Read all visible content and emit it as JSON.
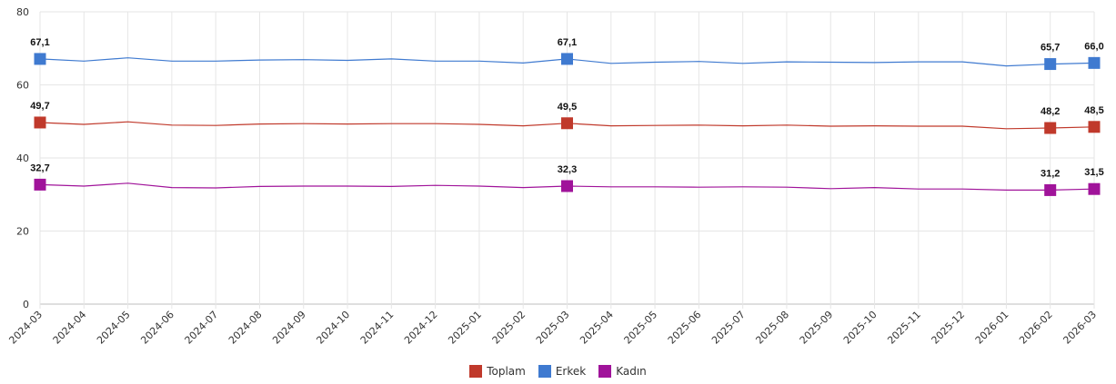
{
  "chart_data": {
    "type": "line",
    "x": [
      "2024-03",
      "2024-04",
      "2024-05",
      "2024-06",
      "2024-07",
      "2024-08",
      "2024-09",
      "2024-10",
      "2024-11",
      "2024-12",
      "2025-01",
      "2025-02",
      "2025-03",
      "2025-04",
      "2025-05",
      "2025-06",
      "2025-07",
      "2025-08",
      "2025-09",
      "2025-10",
      "2025-11",
      "2025-12",
      "2026-01",
      "2026-02",
      "2026-03"
    ],
    "ylim": [
      0,
      80
    ],
    "yticks": [
      0,
      20,
      40,
      60,
      80
    ],
    "grid": true,
    "legend_position": "bottom",
    "series": [
      {
        "name": "Toplam",
        "color": "#c0392b",
        "values": [
          49.7,
          49.2,
          49.9,
          49.0,
          48.9,
          49.3,
          49.4,
          49.3,
          49.4,
          49.4,
          49.2,
          48.8,
          49.5,
          48.8,
          48.9,
          49.0,
          48.8,
          49.0,
          48.7,
          48.8,
          48.7,
          48.7,
          48.0,
          48.2,
          48.5
        ],
        "labels": {
          "0": "49,7",
          "12": "49,5",
          "23": "48,2",
          "24": "48,5"
        }
      },
      {
        "name": "Erkek",
        "color": "#3f7ad0",
        "values": [
          67.1,
          66.5,
          67.4,
          66.5,
          66.5,
          66.8,
          66.9,
          66.7,
          67.1,
          66.5,
          66.5,
          66.0,
          67.1,
          65.9,
          66.2,
          66.4,
          65.9,
          66.3,
          66.2,
          66.1,
          66.3,
          66.3,
          65.2,
          65.7,
          66.0
        ],
        "labels": {
          "0": "67,1",
          "12": "67,1",
          "23": "65,7",
          "24": "66,0"
        }
      },
      {
        "name": "Kadın",
        "color": "#a0139a",
        "values": [
          32.7,
          32.3,
          33.1,
          31.9,
          31.8,
          32.2,
          32.3,
          32.3,
          32.2,
          32.5,
          32.3,
          31.9,
          32.3,
          32.1,
          32.1,
          32.0,
          32.1,
          32.0,
          31.6,
          31.9,
          31.5,
          31.5,
          31.2,
          31.2,
          31.5
        ],
        "labels": {
          "0": "32,7",
          "12": "32,3",
          "23": "31,2",
          "24": "31,5"
        }
      }
    ]
  }
}
